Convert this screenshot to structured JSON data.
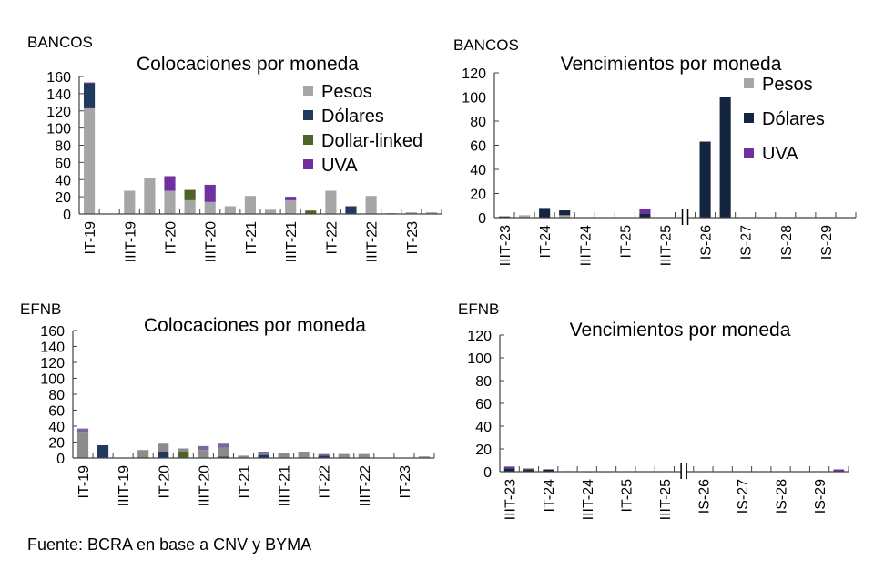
{
  "colors": {
    "pesos": "#a6a6a6",
    "dolares": "#1f3a5f",
    "dolares_dark": "#13253f",
    "dollar_linked": "#4f6228",
    "uva": "#7030a0",
    "uva_light": "#8064a2",
    "pesos_dark": "#8c8c8c"
  },
  "footer": "Fuente: BCRA en base a CNV y BYMA",
  "chart_data": [
    {
      "type": "bar",
      "stacked": true,
      "group_label": "BANCOS",
      "title": "Colocaciones por moneda",
      "ylim": [
        0,
        160
      ],
      "yticks": [
        0,
        20,
        40,
        60,
        80,
        100,
        120,
        140,
        160
      ],
      "categories": [
        "IT-19",
        "",
        "IIIT-19",
        "",
        "IT-20",
        "",
        "IIIT-20",
        "",
        "IT-21",
        "",
        "IIIT-21",
        "",
        "IT-22",
        "",
        "IIIT-22",
        "",
        "IT-23",
        ""
      ],
      "legend": "top-right",
      "series": [
        {
          "name": "Pesos",
          "color": "#a6a6a6",
          "values": [
            123,
            0,
            27,
            42,
            27,
            16,
            14,
            9,
            21,
            5,
            16,
            0,
            27,
            0,
            21,
            1,
            2,
            2
          ]
        },
        {
          "name": "Dólares",
          "color": "#1f3a5f",
          "values": [
            29,
            0,
            0,
            0,
            0,
            0,
            0,
            0,
            0,
            0,
            0,
            0,
            0,
            9,
            0,
            0,
            0,
            0
          ]
        },
        {
          "name": "Dollar-linked",
          "color": "#4f6228",
          "values": [
            0,
            0,
            0,
            0,
            0,
            12,
            0,
            0,
            0,
            0,
            0,
            4,
            0,
            0,
            0,
            0,
            0,
            0
          ]
        },
        {
          "name": "UVA",
          "color": "#7030a0",
          "values": [
            1,
            0,
            0,
            0,
            17,
            0,
            20,
            0,
            0,
            0,
            4,
            0,
            0,
            0,
            0,
            0,
            0,
            0
          ]
        }
      ]
    },
    {
      "type": "bar",
      "stacked": true,
      "group_label": "BANCOS",
      "title": "Vencimientos por moneda",
      "ylim": [
        0,
        120
      ],
      "yticks": [
        0,
        20,
        40,
        60,
        80,
        100,
        120
      ],
      "axis_break": true,
      "categories": [
        "IIIT-23",
        "",
        "IT-24",
        "",
        "IIIT-24",
        "",
        "IT-25",
        "",
        "IIIT-25",
        "",
        "IS-26",
        "",
        "IS-27",
        "",
        "IS-28",
        "",
        "IS-29",
        ""
      ],
      "legend": "top-right",
      "series": [
        {
          "name": "Pesos",
          "color": "#a6a6a6",
          "values": [
            0,
            2,
            0,
            2,
            0,
            0,
            0,
            0,
            0,
            0,
            0,
            0,
            0,
            0,
            0,
            0.5,
            0.5,
            0
          ]
        },
        {
          "name": "Dólares",
          "color": "#13253f",
          "values": [
            1,
            0,
            8,
            4,
            0,
            0,
            0,
            3,
            0,
            0,
            63,
            100,
            0,
            0,
            0,
            0,
            0,
            0
          ]
        },
        {
          "name": "UVA",
          "color": "#7030a0",
          "values": [
            0,
            0,
            0,
            0,
            0,
            0,
            0,
            4,
            0,
            0,
            0,
            0,
            0,
            0,
            0,
            0,
            0,
            0
          ]
        }
      ]
    },
    {
      "type": "bar",
      "stacked": true,
      "group_label": "EFNB",
      "title": "Colocaciones por moneda",
      "ylim": [
        0,
        160
      ],
      "yticks": [
        0,
        20,
        40,
        60,
        80,
        100,
        120,
        140,
        160
      ],
      "categories": [
        "IT-19",
        "",
        "IIIT-19",
        "",
        "IT-20",
        "",
        "IIIT-20",
        "",
        "IT-21",
        "",
        "IIIT-21",
        "",
        "IT-22",
        "",
        "IIIT-22",
        "",
        "IT-23",
        ""
      ],
      "series": [
        {
          "color": "#1f3a5f",
          "values": [
            0,
            16,
            0,
            0,
            8,
            0,
            0,
            2,
            0,
            4,
            0,
            0,
            3,
            0,
            0,
            0,
            0,
            0
          ]
        },
        {
          "color": "#4f6228",
          "values": [
            0,
            0,
            0,
            1,
            0,
            8,
            0,
            0,
            0,
            0,
            0,
            0,
            0,
            0,
            0,
            0,
            0,
            0
          ]
        },
        {
          "color": "#8c8c8c",
          "values": [
            33,
            0,
            0,
            9,
            10,
            4,
            10,
            11,
            3,
            1,
            6,
            8,
            0,
            5,
            5,
            0,
            0,
            2
          ]
        },
        {
          "color": "#8064a2",
          "values": [
            4,
            0,
            0,
            0,
            0,
            0,
            5,
            5,
            0,
            3,
            0,
            0,
            2,
            0,
            0,
            0,
            0,
            0
          ]
        }
      ]
    },
    {
      "type": "bar",
      "stacked": true,
      "group_label": "EFNB",
      "title": "Vencimientos por moneda",
      "ylim": [
        0,
        120
      ],
      "yticks": [
        0,
        20,
        40,
        60,
        80,
        100,
        120
      ],
      "axis_break": true,
      "categories": [
        "IIIT-23",
        "",
        "IT-24",
        "",
        "IIIT-24",
        "",
        "IT-25",
        "",
        "IIIT-25",
        "",
        "IS-26",
        "",
        "IS-27",
        "",
        "IS-28",
        "",
        "IS-29",
        ""
      ],
      "series": [
        {
          "color": "#13253f",
          "values": [
            3,
            2,
            2,
            0,
            0,
            0,
            0,
            0,
            0,
            0,
            0,
            0,
            0,
            0,
            0,
            0,
            0,
            0
          ]
        },
        {
          "color": "#8c8c8c",
          "values": [
            0,
            1,
            0,
            0.5,
            0.3,
            0.3,
            0,
            0,
            0,
            0,
            0,
            0,
            0,
            0,
            0,
            0,
            0,
            0
          ]
        },
        {
          "color": "#7030a0",
          "values": [
            1.5,
            0,
            0,
            0,
            0,
            0,
            0,
            0,
            0,
            0,
            0,
            0,
            0,
            0,
            0,
            0,
            0,
            2
          ]
        }
      ]
    }
  ]
}
